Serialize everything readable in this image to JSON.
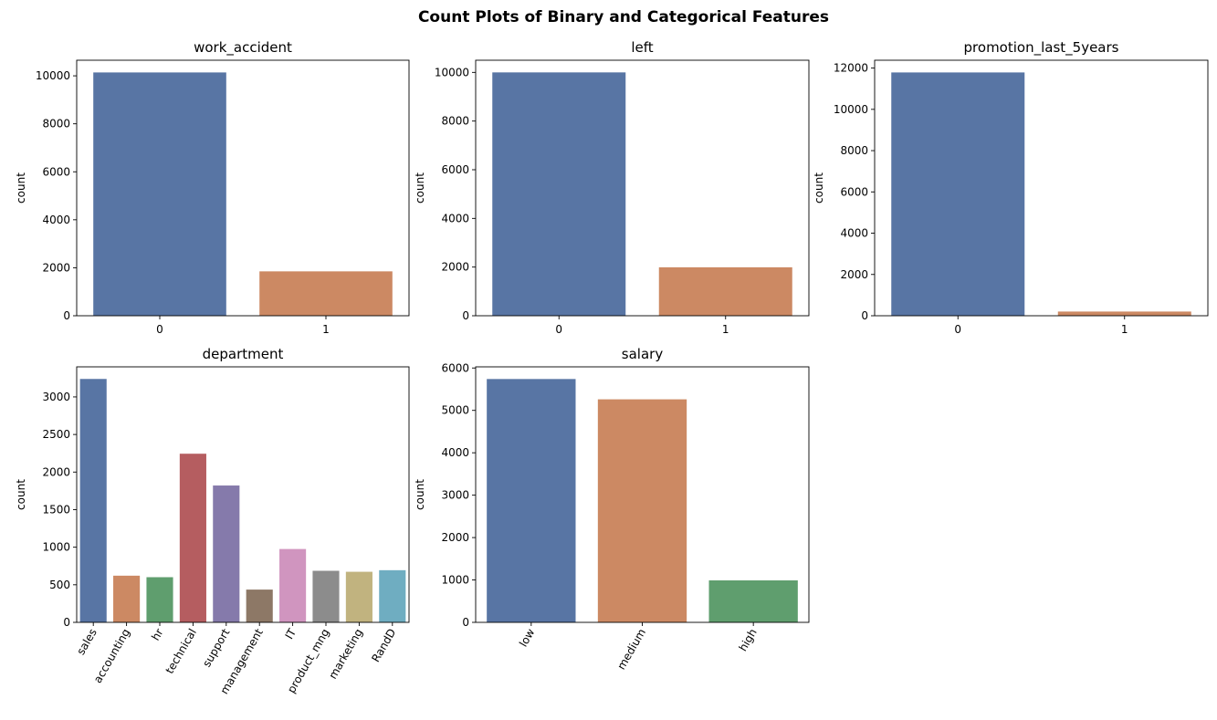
{
  "figure": {
    "suptitle": "Count Plots of Binary and Categorical Features"
  },
  "palette": [
    "#5875a4",
    "#cc8963",
    "#5f9e6e",
    "#b55d60",
    "#857aab",
    "#8d7866",
    "#d095bf",
    "#8c8c8c",
    "#c1b37f",
    "#6fadc1"
  ],
  "chart_data": [
    {
      "type": "bar",
      "title": "work_accident",
      "xlabel": "",
      "ylabel": "count",
      "categories": [
        "0",
        "1"
      ],
      "values": [
        10141,
        1850
      ],
      "ylim": [
        0,
        10650
      ],
      "yticks": [
        0,
        2000,
        4000,
        6000,
        8000,
        10000
      ],
      "tick_rotation": 0
    },
    {
      "type": "bar",
      "title": "left",
      "xlabel": "",
      "ylabel": "count",
      "categories": [
        "0",
        "1"
      ],
      "values": [
        10000,
        1991
      ],
      "ylim": [
        0,
        10500
      ],
      "yticks": [
        0,
        2000,
        4000,
        6000,
        8000,
        10000
      ],
      "tick_rotation": 0
    },
    {
      "type": "bar",
      "title": "promotion_last_5years",
      "xlabel": "",
      "ylabel": "count",
      "categories": [
        "0",
        "1"
      ],
      "values": [
        11788,
        203
      ],
      "ylim": [
        0,
        12380
      ],
      "yticks": [
        0,
        2000,
        4000,
        6000,
        8000,
        10000,
        12000
      ],
      "tick_rotation": 0
    },
    {
      "type": "bar",
      "title": "department",
      "xlabel": "",
      "ylabel": "count",
      "categories": [
        "sales",
        "accounting",
        "hr",
        "technical",
        "support",
        "management",
        "IT",
        "product_mng",
        "marketing",
        "RandD"
      ],
      "values": [
        3239,
        621,
        601,
        2244,
        1821,
        436,
        976,
        686,
        673,
        694
      ],
      "ylim": [
        0,
        3400
      ],
      "yticks": [
        0,
        500,
        1000,
        1500,
        2000,
        2500,
        3000
      ],
      "tick_rotation": 60
    },
    {
      "type": "bar",
      "title": "salary",
      "xlabel": "",
      "ylabel": "count",
      "categories": [
        "low",
        "medium",
        "high"
      ],
      "values": [
        5740,
        5261,
        990
      ],
      "ylim": [
        0,
        6027
      ],
      "yticks": [
        0,
        1000,
        2000,
        3000,
        4000,
        5000,
        6000
      ],
      "tick_rotation": 60
    }
  ]
}
